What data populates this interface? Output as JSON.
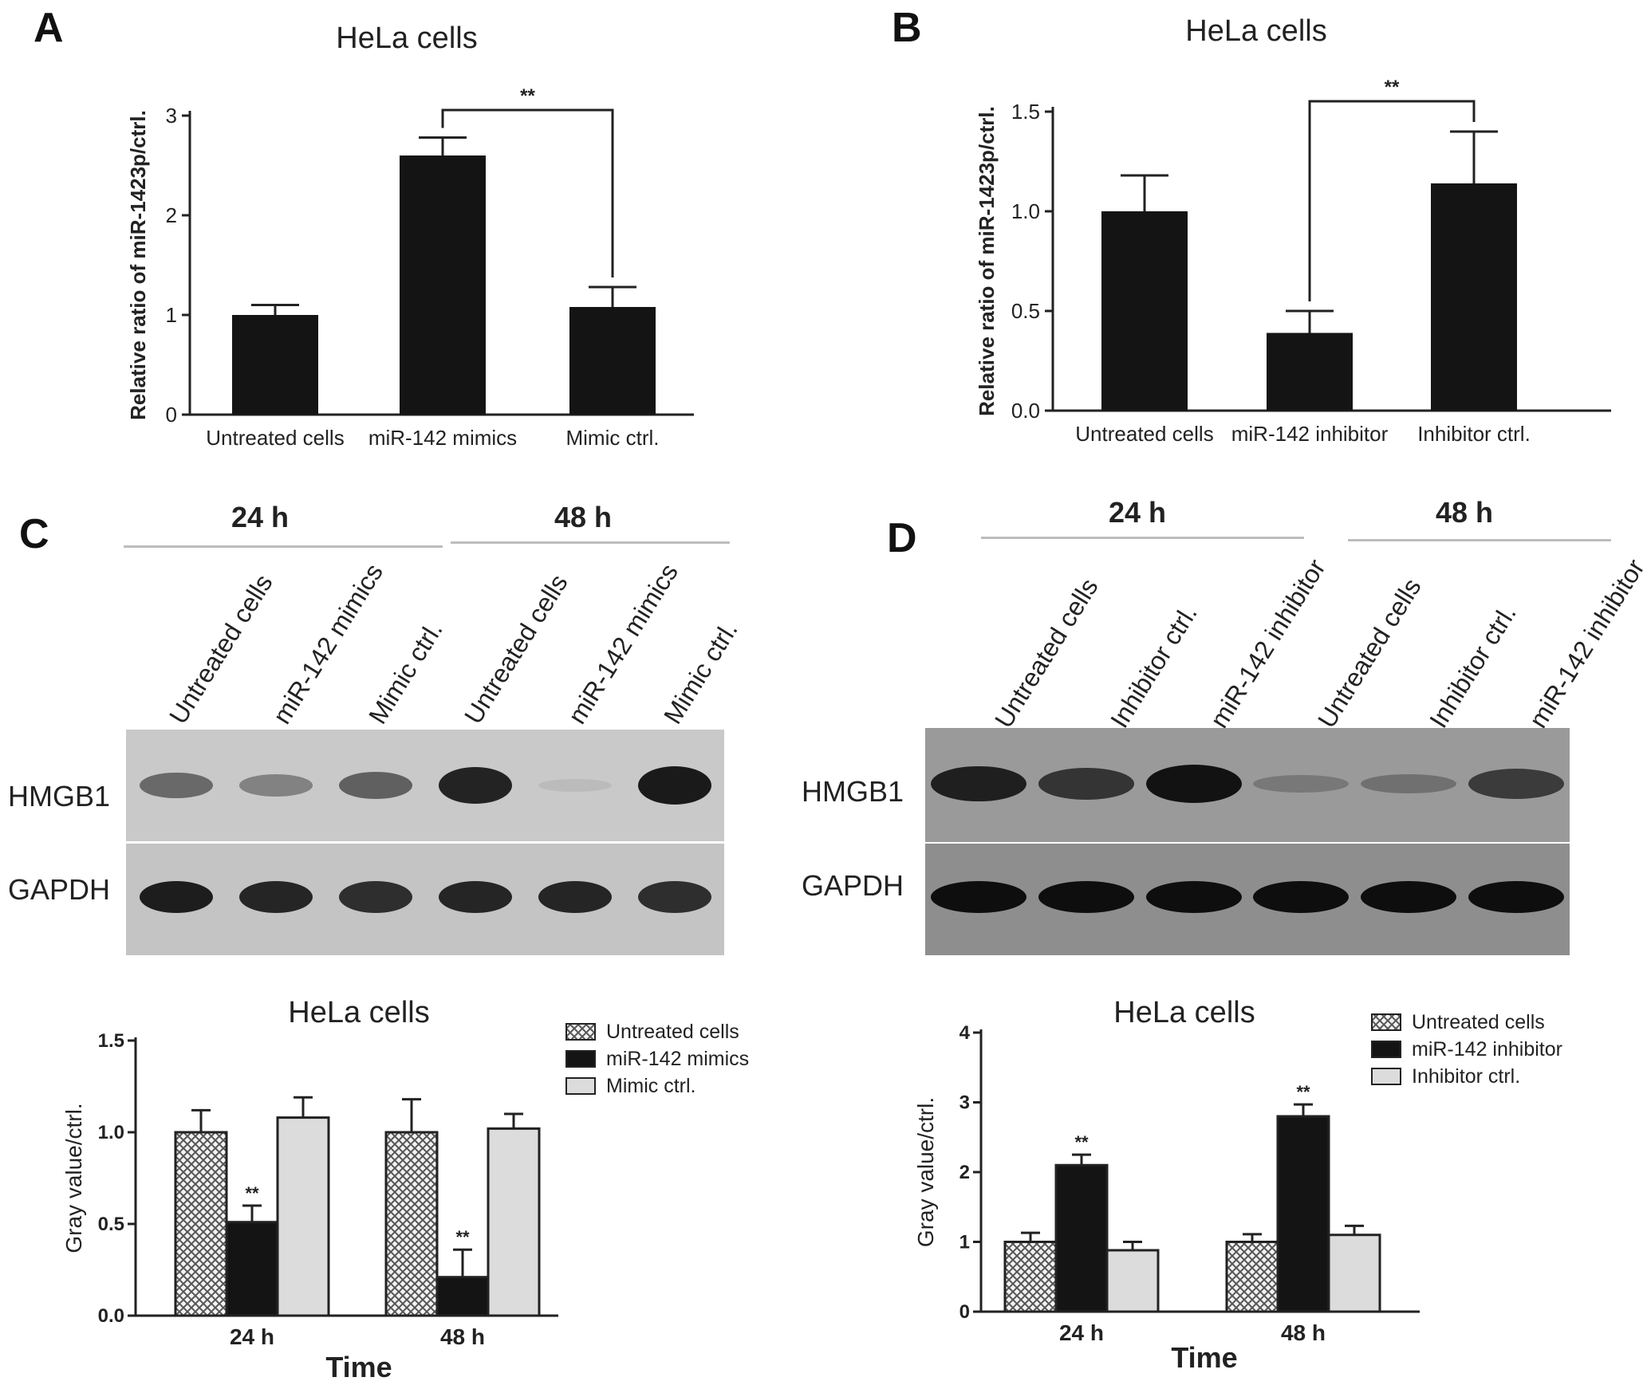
{
  "panels": {
    "A": {
      "letter": "A"
    },
    "B": {
      "letter": "B"
    },
    "C": {
      "letter": "C",
      "blot": {
        "time_headers": [
          "24 h",
          "48 h"
        ],
        "lanes": [
          "Untreated cells",
          "miR-142 mimics",
          "Mimic ctrl.",
          "Untreated cells",
          "miR-142 mimics",
          "Mimic ctrl."
        ],
        "rows": [
          "HMGB1",
          "GAPDH"
        ],
        "hmgb1_intensity": [
          0.55,
          0.4,
          0.6,
          0.95,
          0.08,
          1.0
        ],
        "gapdh_intensity": [
          0.95,
          0.9,
          0.85,
          0.9,
          0.9,
          0.85
        ]
      }
    },
    "D": {
      "letter": "D",
      "blot": {
        "time_headers": [
          "24 h",
          "48 h"
        ],
        "lanes": [
          "Untreated cells",
          "Inhibitor ctrl.",
          "miR-142 inhibitor",
          "Untreated cells",
          "Inhibitor ctrl.",
          "miR-142 inhibitor"
        ],
        "rows": [
          "HMGB1",
          "GAPDH"
        ],
        "hmgb1_intensity": [
          0.9,
          0.75,
          1.0,
          0.25,
          0.3,
          0.7
        ],
        "gapdh_intensity": [
          1.0,
          1.0,
          1.0,
          1.0,
          1.0,
          1.0
        ]
      }
    }
  },
  "colors": {
    "bar_dark": "#141414",
    "bar_light": "#dcdcdc",
    "hatch": "#555555",
    "axis": "#222222"
  },
  "chart_data": [
    {
      "id": "A",
      "type": "bar",
      "title": "HeLa cells",
      "xlabel": "",
      "ylabel": "Relative ratio of miR-1423p/ctrl.",
      "categories": [
        "Untreated cells",
        "miR-142 mimics",
        "Mimic ctrl."
      ],
      "values": [
        1.0,
        2.6,
        1.08
      ],
      "errors": [
        0.1,
        0.18,
        0.2
      ],
      "ylim": [
        0,
        3
      ],
      "yticks": [
        "0",
        "1",
        "2",
        "3"
      ],
      "significance": {
        "between": [
          1,
          2
        ],
        "label": "**"
      }
    },
    {
      "id": "B",
      "type": "bar",
      "title": "HeLa cells",
      "xlabel": "",
      "ylabel": "Relative ratio of miR-1423p/ctrl.",
      "categories": [
        "Untreated cells",
        "miR-142 inhibitor",
        "Inhibitor ctrl."
      ],
      "values": [
        1.0,
        0.39,
        1.14
      ],
      "errors": [
        0.18,
        0.11,
        0.26
      ],
      "ylim": [
        0,
        1.5
      ],
      "yticks": [
        "0.0",
        "0.5",
        "1.0",
        "1.5"
      ],
      "significance": {
        "between": [
          1,
          2
        ],
        "label": "**"
      }
    },
    {
      "id": "C",
      "type": "bar",
      "title": "HeLa cells",
      "xlabel": "Time",
      "ylabel": "Gray value/ctrl.",
      "categories": [
        "24 h",
        "48 h"
      ],
      "ylim": [
        0,
        1.5
      ],
      "yticks": [
        "0.0",
        "0.5",
        "1.0",
        "1.5"
      ],
      "legend": {
        "placement": "top-right"
      },
      "series": [
        {
          "name": "Untreated cells",
          "values": [
            1.0,
            1.0
          ],
          "errors": [
            0.12,
            0.18
          ],
          "sig": [
            "",
            ""
          ],
          "fill": "hatch"
        },
        {
          "name": "miR-142 mimics",
          "values": [
            0.51,
            0.21
          ],
          "errors": [
            0.09,
            0.15
          ],
          "sig": [
            "**",
            "**"
          ],
          "fill": "dark"
        },
        {
          "name": "Mimic ctrl.",
          "values": [
            1.08,
            1.02
          ],
          "errors": [
            0.11,
            0.08
          ],
          "sig": [
            "",
            ""
          ],
          "fill": "light"
        }
      ]
    },
    {
      "id": "D",
      "type": "bar",
      "title": "HeLa cells",
      "xlabel": "Time",
      "ylabel": "Gray value/ctrl.",
      "categories": [
        "24 h",
        "48 h"
      ],
      "ylim": [
        0,
        4
      ],
      "yticks": [
        "0",
        "1",
        "2",
        "3",
        "4"
      ],
      "legend": {
        "placement": "top-right"
      },
      "series": [
        {
          "name": "Untreated cells",
          "values": [
            1.0,
            1.0
          ],
          "errors": [
            0.13,
            0.11
          ],
          "sig": [
            "",
            ""
          ],
          "fill": "hatch"
        },
        {
          "name": "miR-142 inhibitor",
          "values": [
            2.1,
            2.8
          ],
          "errors": [
            0.15,
            0.17
          ],
          "sig": [
            "**",
            "**"
          ],
          "fill": "dark"
        },
        {
          "name": "Inhibitor ctrl.",
          "values": [
            0.88,
            1.1
          ],
          "errors": [
            0.12,
            0.13
          ],
          "sig": [
            "",
            ""
          ],
          "fill": "light"
        }
      ]
    }
  ]
}
